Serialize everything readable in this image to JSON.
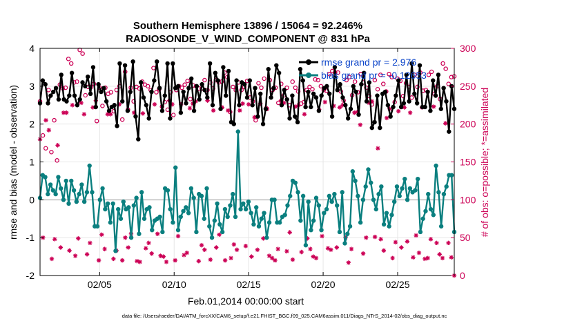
{
  "chart_data": {
    "type": "line",
    "title_line1": "Southern Hemisphere 13896 / 15064 = 92.246%",
    "title_line2": "RADIOSONDE_V_WIND_COMPONENT @ 831 hPa",
    "xlabel": "Feb.01,2014 00:00:00 start",
    "ylabel_left": "rmse and bias (model - observation)",
    "ylabel_right": "# of obs: o=possible; *=assimilated",
    "footnote": "data file: /Users/raeder/DAI/ATM_forcXX/CAM6_setup/f.e21.FHIST_BGC.f09_025.CAM6assim.011/Diags_NTrS_2014-02/obs_diag_output.nc",
    "x_ticks": [
      {
        "day": 5,
        "label": "02/05"
      },
      {
        "day": 10,
        "label": "02/10"
      },
      {
        "day": 15,
        "label": "02/15"
      },
      {
        "day": 20,
        "label": "02/20"
      },
      {
        "day": 25,
        "label": "02/25"
      }
    ],
    "xlim": [
      1,
      28.8
    ],
    "ylim_left": [
      -2,
      4
    ],
    "y_ticks_left": [
      "-2",
      "-1",
      "0",
      "1",
      "2",
      "3",
      "4"
    ],
    "ylim_right": [
      0,
      300
    ],
    "y_ticks_right": [
      "0",
      "50",
      "100",
      "150",
      "200",
      "250",
      "300"
    ],
    "legend": [
      {
        "label": "rmse grand pr = 2.976",
        "color": "#000000"
      },
      {
        "label": "bias grand pr = -0.12653",
        "color": "#0a7f7f"
      }
    ],
    "series": [
      {
        "name": "rmse",
        "color": "#000000",
        "marker": "dot",
        "values": [
          2.55,
          3.15,
          3.05,
          2.55,
          2.75,
          2.85,
          2.95,
          2.65,
          3.3,
          2.65,
          2.6,
          2.75,
          3.35,
          2.75,
          2.5,
          2.65,
          3.1,
          3.0,
          3.25,
          2.8,
          3.5,
          2.45,
          3.05,
          2.85,
          2.95,
          2.6,
          2.35,
          2.45,
          2.5,
          1.95,
          3.6,
          2.6,
          3.55,
          2.35,
          2.85,
          3.65,
          2.2,
          1.6,
          3.1,
          2.7,
          2.5,
          2.15,
          2.85,
          3.15,
          3.65,
          2.95,
          2.35,
          2.75,
          3.6,
          2.15,
          3.6,
          2.95,
          3.0,
          2.3,
          2.85,
          2.55,
          2.95,
          3.2,
          2.35,
          3.0,
          2.65,
          3.05,
          2.9,
          2.7,
          3.6,
          2.5,
          3.35,
          3.15,
          2.4,
          3.5,
          2.75,
          3.4,
          2.05,
          2.0,
          3.15,
          2.5,
          3.1,
          3.05,
          2.7,
          3.15,
          2.5,
          2.95,
          2.2,
          2.8,
          2.0,
          2.4,
          3.45,
          2.7,
          2.95,
          3.55,
          3.35,
          2.5,
          2.9,
          2.65,
          2.15,
          2.75,
          2.2,
          2.05,
          3.45,
          3.15,
          2.45,
          2.85,
          2.45,
          2.8,
          2.7,
          2.35,
          2.75,
          2.95,
          3.0,
          2.8,
          2.2,
          3.5,
          2.9,
          3.05,
          2.7,
          2.5,
          2.15,
          2.4,
          3.0,
          2.85,
          2.25,
          3.05,
          3.35,
          2.6,
          3.1,
          1.9,
          2.05,
          2.75,
          1.9,
          2.8,
          2.85,
          2.5,
          2.2,
          2.45,
          2.75,
          3.15,
          2.45,
          2.55,
          3.3,
          2.6,
          3.6,
          2.8,
          2.55,
          3.55,
          2.45,
          2.45,
          2.85,
          2.35,
          3.15,
          2.75,
          3.3,
          2.4,
          2.95,
          2.6,
          1.8,
          3.0,
          2.4
        ]
      },
      {
        "name": "bias",
        "color": "#0a7f7f",
        "marker": "dot",
        "values": [
          0.05,
          0.65,
          0.6,
          0.15,
          0.4,
          0.25,
          0.15,
          0.6,
          0.3,
          0.0,
          0.5,
          -0.1,
          0.5,
          0.25,
          -0.05,
          0.15,
          0.4,
          -0.05,
          0.2,
          0.9,
          0.2,
          -0.7,
          -0.7,
          0.0,
          0.3,
          -0.25,
          -0.1,
          -0.6,
          -0.1,
          -1.35,
          -0.25,
          -0.5,
          -0.05,
          -0.25,
          -0.2,
          -1.0,
          -0.15,
          0.05,
          -0.9,
          0.2,
          -0.5,
          -0.25,
          -0.2,
          -0.8,
          -0.55,
          -0.5,
          -0.45,
          -0.85,
          0.3,
          0.25,
          -0.25,
          -0.6,
          0.85,
          -0.8,
          -0.45,
          -0.3,
          -0.2,
          -0.35,
          0.3,
          0.05,
          -0.85,
          0.15,
          0.1,
          -0.5,
          0.3,
          -0.7,
          -1.0,
          -0.55,
          -0.1,
          -0.65,
          -0.85,
          -0.25,
          -0.45,
          -0.15,
          0.15,
          -0.45,
          1.8,
          -0.25,
          -0.1,
          -0.25,
          -0.05,
          -0.35,
          -0.65,
          -0.2,
          -0.7,
          -0.5,
          -0.35,
          -1.0,
          -0.6,
          0.0,
          0.0,
          -0.6,
          -0.6,
          -0.45,
          -0.4,
          -0.15,
          0.1,
          0.5,
          0.45,
          0.2,
          -0.55,
          0.1,
          -1.2,
          -0.05,
          -0.8,
          -0.55,
          0.05,
          -0.15,
          -0.8,
          -0.35,
          -0.25,
          0.1,
          -0.05,
          0.15,
          -0.15,
          -0.85,
          0.2,
          -1.15,
          -0.9,
          -0.7,
          0.75,
          0.5,
          0.1,
          -0.6,
          0.0,
          0.35,
          0.8,
          0.45,
          0.0,
          -0.25,
          0.15,
          0.35,
          -0.65,
          -0.35,
          -0.7,
          -0.4,
          -0.05,
          0.35,
          0.1,
          0.3,
          0.55,
          0.0,
          0.3,
          0.2,
          0.25,
          0.55,
          -0.85,
          -0.5,
          -0.3,
          0.15,
          -0.25,
          -0.4,
          0.9,
          0.2,
          -0.7,
          0.15,
          0.35,
          0.65,
          0.65,
          -0.85
        ]
      },
      {
        "name": "possible",
        "color": "#cc0055",
        "marker": "circle",
        "axis": "right",
        "values": [
          230,
          185,
          168,
          245,
          163,
          205,
          152,
          252,
          247,
          248,
          286,
          280,
          255,
          256,
          298,
          293,
          238,
          249,
          249,
          253,
          204,
          248,
          224,
          248,
          240,
          242,
          217,
          245,
          250,
          206,
          269,
          219,
          248,
          230,
          249,
          247,
          256,
          252,
          250,
          245,
          274,
          242,
          246,
          223,
          229,
          219,
          242,
          212,
          245,
          250,
          248,
          252,
          257,
          233,
          251,
          250,
          247,
          247,
          258,
          245,
          255,
          247,
          258,
          255,
          256,
          268,
          262,
          216,
          249,
          245,
          255,
          245,
          249,
          257,
          235,
          230,
          205,
          254,
          248,
          260,
          220,
          258,
          245,
          248,
          228,
          253,
          238,
          248,
          225,
          256,
          248,
          243,
          227,
          229,
          245,
          249,
          246,
          259,
          258,
          250,
          245,
          244,
          266,
          270,
          268,
          268,
          243,
          231,
          258,
          262,
          238,
          256,
          242,
          266,
          255,
          248,
          237,
          226,
          258,
          246,
          265,
          253,
          243,
          266,
          262,
          229,
          260,
          257,
          237,
          254,
          249,
          235,
          265,
          249,
          268,
          244,
          245,
          265,
          269,
          240,
          250,
          233,
          280,
          273,
          253,
          262,
          263
        ]
      },
      {
        "name": "assimilated",
        "color": "#cc0055",
        "marker": "asterisk",
        "axis": "right",
        "values": [
          180,
          50,
          205,
          192,
          22,
          48,
          172,
          37,
          215,
          215,
          33,
          225,
          26,
          49,
          228,
          213,
          28,
          43,
          222,
          231,
          20,
          54,
          35,
          213,
          213,
          22,
          33,
          226,
          20,
          50,
          37,
          55,
          215,
          19,
          18,
          214,
          36,
          43,
          29,
          226,
          55,
          26,
          25,
          18,
          231,
          226,
          20,
          52,
          226,
          27,
          30,
          221,
          227,
          230,
          19,
          40,
          34,
          231,
          21,
          218,
          37,
          54,
          222,
          20,
          218,
          23,
          41,
          34,
          218,
          227,
          39,
          226,
          25,
          209,
          34,
          227,
          49,
          221,
          26,
          23,
          20,
          35,
          231,
          228,
          32,
          57,
          21,
          223,
          225,
          31,
          213,
          49,
          35,
          25,
          23,
          219,
          52,
          229,
          36,
          34,
          224,
          37,
          222,
          225,
          50,
          17,
          35,
          215,
          216,
          199,
          29,
          50,
          228,
          230,
          51,
          168,
          48,
          33,
          208,
          220,
          23,
          44,
          217,
          37,
          222,
          45,
          215,
          24,
          53,
          30,
          222,
          22,
          23,
          48,
          223,
          43,
          28,
          23,
          201,
          43,
          24,
          0
        ]
      }
    ]
  }
}
